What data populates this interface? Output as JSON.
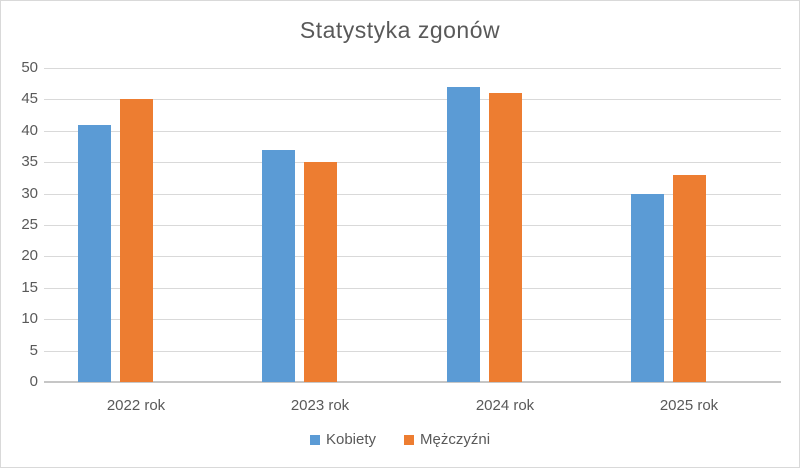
{
  "title": "Statystyka zgonów",
  "colors": {
    "background": "#ffffff",
    "chart_border": "#d9d9d9",
    "text": "#595959",
    "gridline": "#d9d9d9",
    "axis_line": "#c6c6c6",
    "series_kobiety": "#5b9bd5",
    "series_mezczyzni": "#ed7d31"
  },
  "chart_data": {
    "type": "bar",
    "title": "Statystyka zgonów",
    "categories": [
      "2022 rok",
      "2023 rok",
      "2024 rok",
      "2025 rok"
    ],
    "series": [
      {
        "name": "Kobiety",
        "color": "#5b9bd5",
        "values": [
          41,
          37,
          47,
          30
        ]
      },
      {
        "name": "Mężczyźni",
        "color": "#ed7d31",
        "values": [
          45,
          35,
          46,
          33
        ]
      }
    ],
    "xlabel": "",
    "ylabel": "",
    "ylim": [
      0,
      50
    ],
    "ytick_step": 5,
    "grid": true,
    "legend_position": "bottom"
  }
}
